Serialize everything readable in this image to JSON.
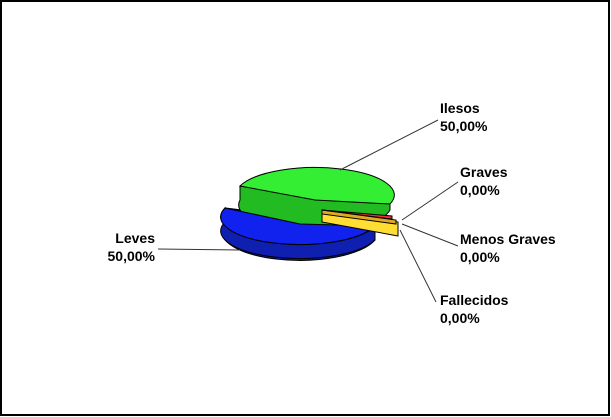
{
  "chart_data": {
    "type": "pie",
    "title": "",
    "style": "3d-exploded",
    "slices": [
      {
        "name": "Ilesos",
        "value": 50,
        "label": "50,00%",
        "color": "#33ee33"
      },
      {
        "name": "Graves",
        "value": 0,
        "label": "0,00%",
        "color": "#ee3333"
      },
      {
        "name": "Menos Graves",
        "value": 0,
        "label": "0,00%",
        "color": "#ffee33"
      },
      {
        "name": "Fallecidos",
        "value": 0,
        "label": "0,00%",
        "color": "#ddaa22"
      },
      {
        "name": "Leves",
        "value": 50,
        "label": "50,00%",
        "color": "#1122ee"
      }
    ]
  }
}
